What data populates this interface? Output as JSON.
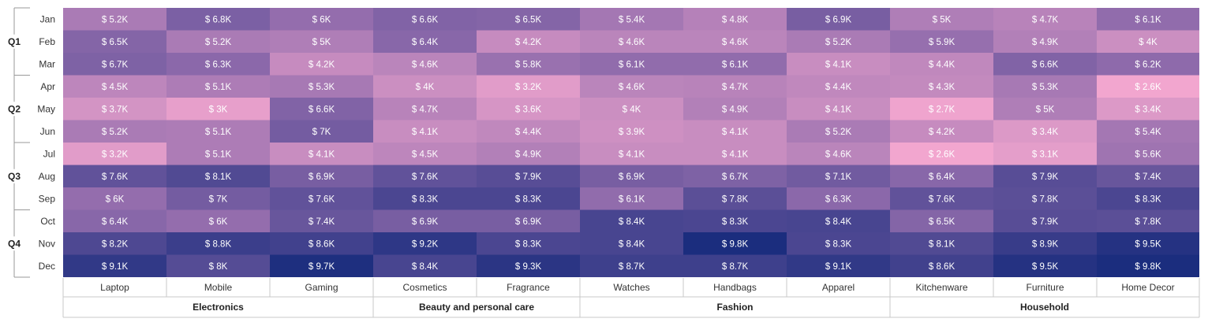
{
  "chart_data": {
    "type": "heatmap",
    "value_prefix": "$ ",
    "value_suffix": "K",
    "rows": [
      {
        "quarter": "Q1",
        "months": [
          "Jan",
          "Feb",
          "Mar"
        ]
      },
      {
        "quarter": "Q2",
        "months": [
          "Apr",
          "May",
          "Jun"
        ]
      },
      {
        "quarter": "Q3",
        "months": [
          "Jul",
          "Aug",
          "Sep"
        ]
      },
      {
        "quarter": "Q4",
        "months": [
          "Oct",
          "Nov",
          "Dec"
        ]
      }
    ],
    "column_groups": [
      {
        "name": "Electronics",
        "categories": [
          "Laptop",
          "Mobile",
          "Gaming"
        ]
      },
      {
        "name": "Beauty and personal care",
        "categories": [
          "Cosmetics",
          "Fragrance"
        ]
      },
      {
        "name": "Fashion",
        "categories": [
          "Watches",
          "Handbags",
          "Apparel"
        ]
      },
      {
        "name": "Household",
        "categories": [
          "Kitchenware",
          "Furniture",
          "Home Decor"
        ]
      }
    ],
    "values": [
      [
        5.2,
        6.8,
        6,
        6.6,
        6.5,
        5.4,
        4.8,
        6.9,
        5,
        4.7,
        6.1
      ],
      [
        6.5,
        5.2,
        5,
        6.4,
        4.2,
        4.6,
        4.6,
        5.2,
        5.9,
        4.9,
        4
      ],
      [
        6.7,
        6.3,
        4.2,
        4.6,
        5.8,
        6.1,
        6.1,
        4.1,
        4.4,
        6.6,
        6.2
      ],
      [
        4.5,
        5.1,
        5.3,
        4,
        3.2,
        4.6,
        4.7,
        4.4,
        4.3,
        5.3,
        2.6
      ],
      [
        3.7,
        3,
        6.6,
        4.7,
        3.6,
        4,
        4.9,
        4.1,
        2.7,
        5,
        3.4
      ],
      [
        5.2,
        5.1,
        7,
        4.1,
        4.4,
        3.9,
        4.1,
        5.2,
        4.2,
        3.4,
        5.4
      ],
      [
        3.2,
        5.1,
        4.1,
        4.5,
        4.9,
        4.1,
        4.1,
        4.6,
        2.6,
        3.1,
        5.6
      ],
      [
        7.6,
        8.1,
        6.9,
        7.6,
        7.9,
        6.9,
        6.7,
        7.1,
        6.4,
        7.9,
        7.4
      ],
      [
        6,
        7,
        7.6,
        8.3,
        8.3,
        6.1,
        7.8,
        6.3,
        7.6,
        7.8,
        8.3
      ],
      [
        6.4,
        6,
        7.4,
        6.9,
        6.9,
        8.4,
        8.3,
        8.4,
        6.5,
        7.9,
        7.8
      ],
      [
        8.2,
        8.8,
        8.6,
        9.2,
        8.3,
        8.4,
        9.8,
        8.3,
        8.1,
        8.9,
        9.5
      ],
      [
        9.1,
        8,
        9.7,
        8.4,
        9.3,
        8.7,
        8.7,
        9.1,
        8.6,
        9.5,
        9.8
      ]
    ],
    "color_scale": {
      "min_color": "#F2A6CF",
      "mid_color": "#8E6AAB",
      "max_color": "#1B2D7E"
    },
    "color_range": [
      2.6,
      9.8
    ]
  }
}
